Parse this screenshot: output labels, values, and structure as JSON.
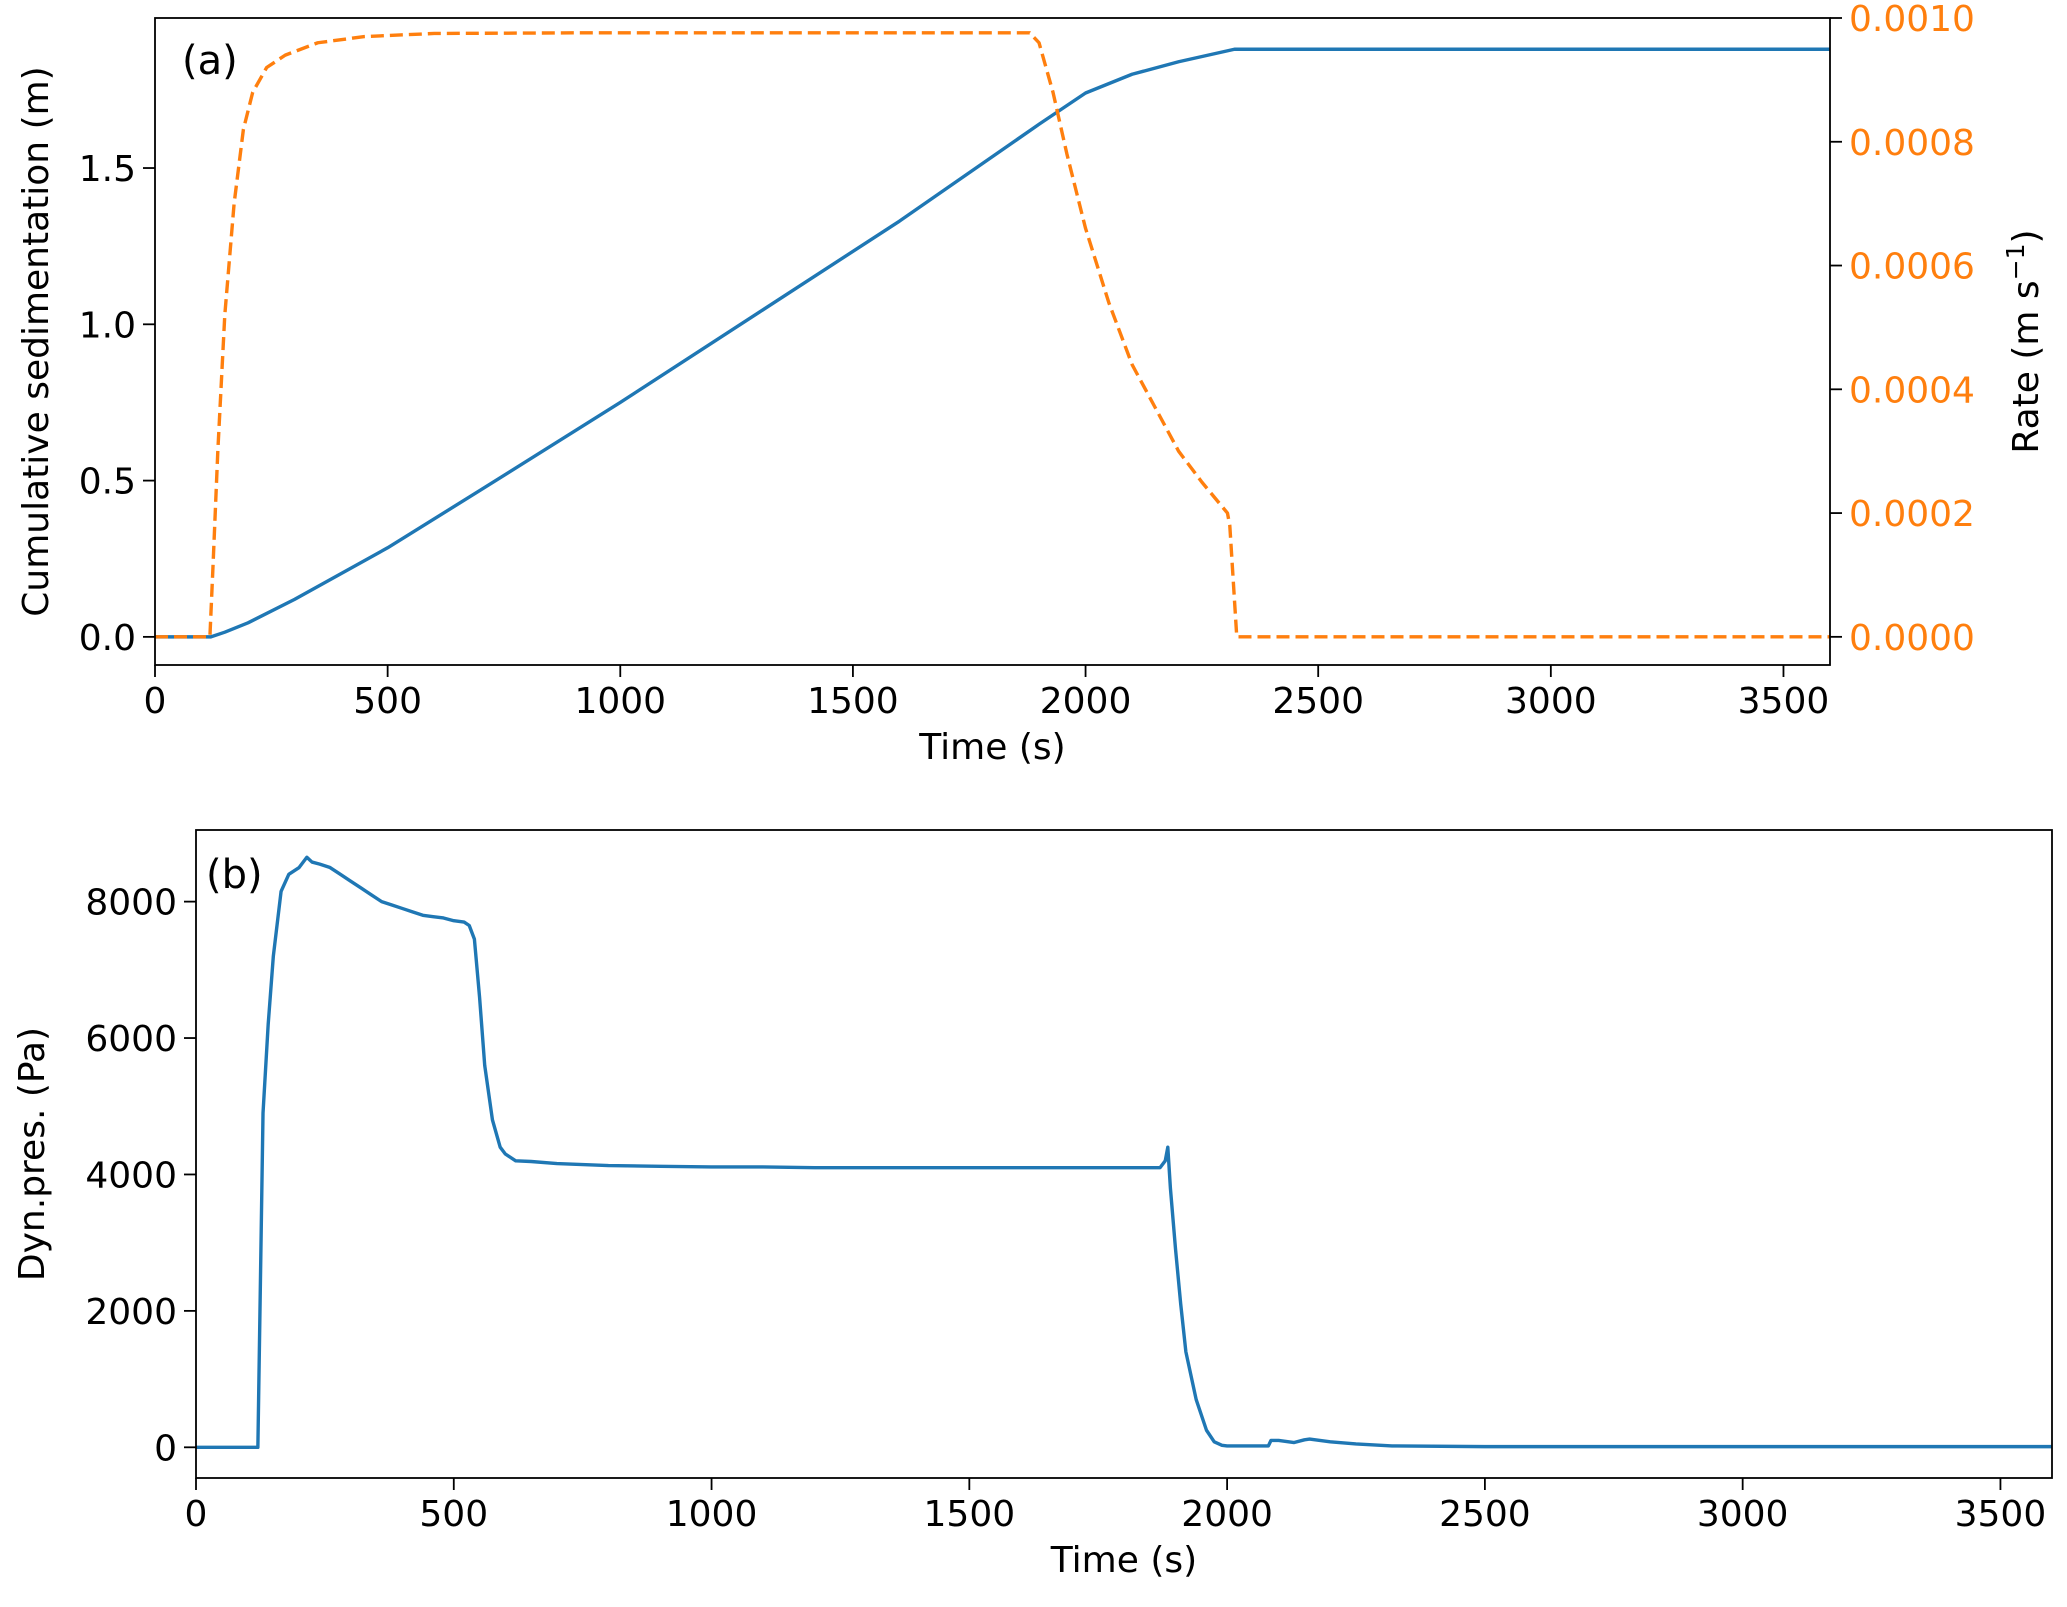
{
  "chart_data": [
    {
      "type": "line",
      "panel_label": "(a)",
      "xlabel": "Time (s)",
      "ylabel": "Cumulative sedimentation  (m)",
      "y2label": "Rate (m s",
      "y2label_sup": "−1",
      "y2label_close": ")",
      "xlim": [
        0,
        3600
      ],
      "ylim": [
        -0.09,
        1.98
      ],
      "y2lim": [
        -4.55e-05,
        0.001
      ],
      "xticks": [
        0,
        500,
        1000,
        1500,
        2000,
        2500,
        3000,
        3500
      ],
      "yticks": [
        0.0,
        0.5,
        1.0,
        1.5
      ],
      "yticklabels": [
        "0.0",
        "0.5",
        "1.0",
        "1.5"
      ],
      "y2ticks": [
        0,
        0.0002,
        0.0004,
        0.0006,
        0.0008,
        0.001
      ],
      "y2ticklabels": [
        "0.0000",
        "0.0002",
        "0.0004",
        "0.0006",
        "0.0008",
        "0.0010"
      ],
      "grid": false,
      "series": [
        {
          "color": "#1f77b4",
          "style": "solid",
          "axis": "left",
          "x": [
            0,
            120,
            150,
            200,
            300,
            500,
            700,
            1000,
            1300,
            1600,
            1900,
            2000,
            2100,
            2200,
            2320,
            3600
          ],
          "y": [
            0,
            0,
            0.015,
            0.045,
            0.12,
            0.285,
            0.47,
            0.75,
            1.04,
            1.33,
            1.64,
            1.74,
            1.8,
            1.84,
            1.88,
            1.88
          ]
        },
        {
          "color": "#ff7f0e",
          "style": "dashed",
          "axis": "right",
          "x": [
            0,
            118,
            125,
            135,
            150,
            170,
            190,
            210,
            240,
            280,
            350,
            450,
            600,
            900,
            1200,
            1500,
            1880,
            1900,
            1930,
            1960,
            2000,
            2050,
            2100,
            2150,
            2200,
            2250,
            2305,
            2310,
            2325,
            3600
          ],
          "y": [
            0,
            0,
            0.00012,
            0.0003,
            0.00052,
            0.0007,
            0.00082,
            0.00088,
            0.00092,
            0.00094,
            0.00096,
            0.00097,
            0.000975,
            0.000976,
            0.000976,
            0.000976,
            0.000976,
            0.00096,
            0.00088,
            0.00078,
            0.00066,
            0.00054,
            0.00044,
            0.00037,
            0.0003,
            0.00025,
            0.0002,
            0.00018,
            0,
            0
          ]
        }
      ]
    },
    {
      "type": "line",
      "panel_label": "(b)",
      "xlabel": "Time (s)",
      "ylabel": "Dyn.pres. (Pa)",
      "xlim": [
        0,
        3600
      ],
      "ylim": [
        -450,
        9050
      ],
      "xticks": [
        0,
        500,
        1000,
        1500,
        2000,
        2500,
        3000,
        3500
      ],
      "yticks": [
        0,
        2000,
        4000,
        6000,
        8000
      ],
      "yticklabels": [
        "0",
        "2000",
        "4000",
        "6000",
        "8000"
      ],
      "grid": false,
      "series": [
        {
          "color": "#1f77b4",
          "style": "solid",
          "x": [
            0,
            118,
            120,
            130,
            140,
            150,
            165,
            180,
            200,
            215,
            225,
            240,
            260,
            280,
            300,
            320,
            340,
            360,
            380,
            400,
            420,
            440,
            460,
            480,
            500,
            520,
            530,
            540,
            550,
            560,
            575,
            590,
            600,
            620,
            650,
            700,
            800,
            900,
            1000,
            1100,
            1200,
            1300,
            1400,
            1500,
            1600,
            1700,
            1800,
            1870,
            1880,
            1885,
            1890,
            1900,
            1910,
            1920,
            1940,
            1960,
            1975,
            1990,
            2000,
            2050,
            2080,
            2085,
            2100,
            2130,
            2150,
            2160,
            2200,
            2250,
            2320,
            2500,
            3000,
            3600
          ],
          "y": [
            0,
            0,
            0,
            4900,
            6200,
            7200,
            8150,
            8400,
            8500,
            8650,
            8580,
            8550,
            8500,
            8400,
            8300,
            8200,
            8100,
            8000,
            7950,
            7900,
            7850,
            7800,
            7780,
            7760,
            7720,
            7700,
            7650,
            7450,
            6600,
            5600,
            4800,
            4400,
            4300,
            4200,
            4190,
            4160,
            4130,
            4120,
            4110,
            4110,
            4100,
            4100,
            4100,
            4100,
            4100,
            4100,
            4100,
            4100,
            4200,
            4400,
            3800,
            2900,
            2100,
            1400,
            700,
            250,
            80,
            30,
            20,
            20,
            20,
            100,
            100,
            70,
            110,
            120,
            80,
            50,
            20,
            10,
            10,
            10
          ]
        }
      ]
    }
  ]
}
